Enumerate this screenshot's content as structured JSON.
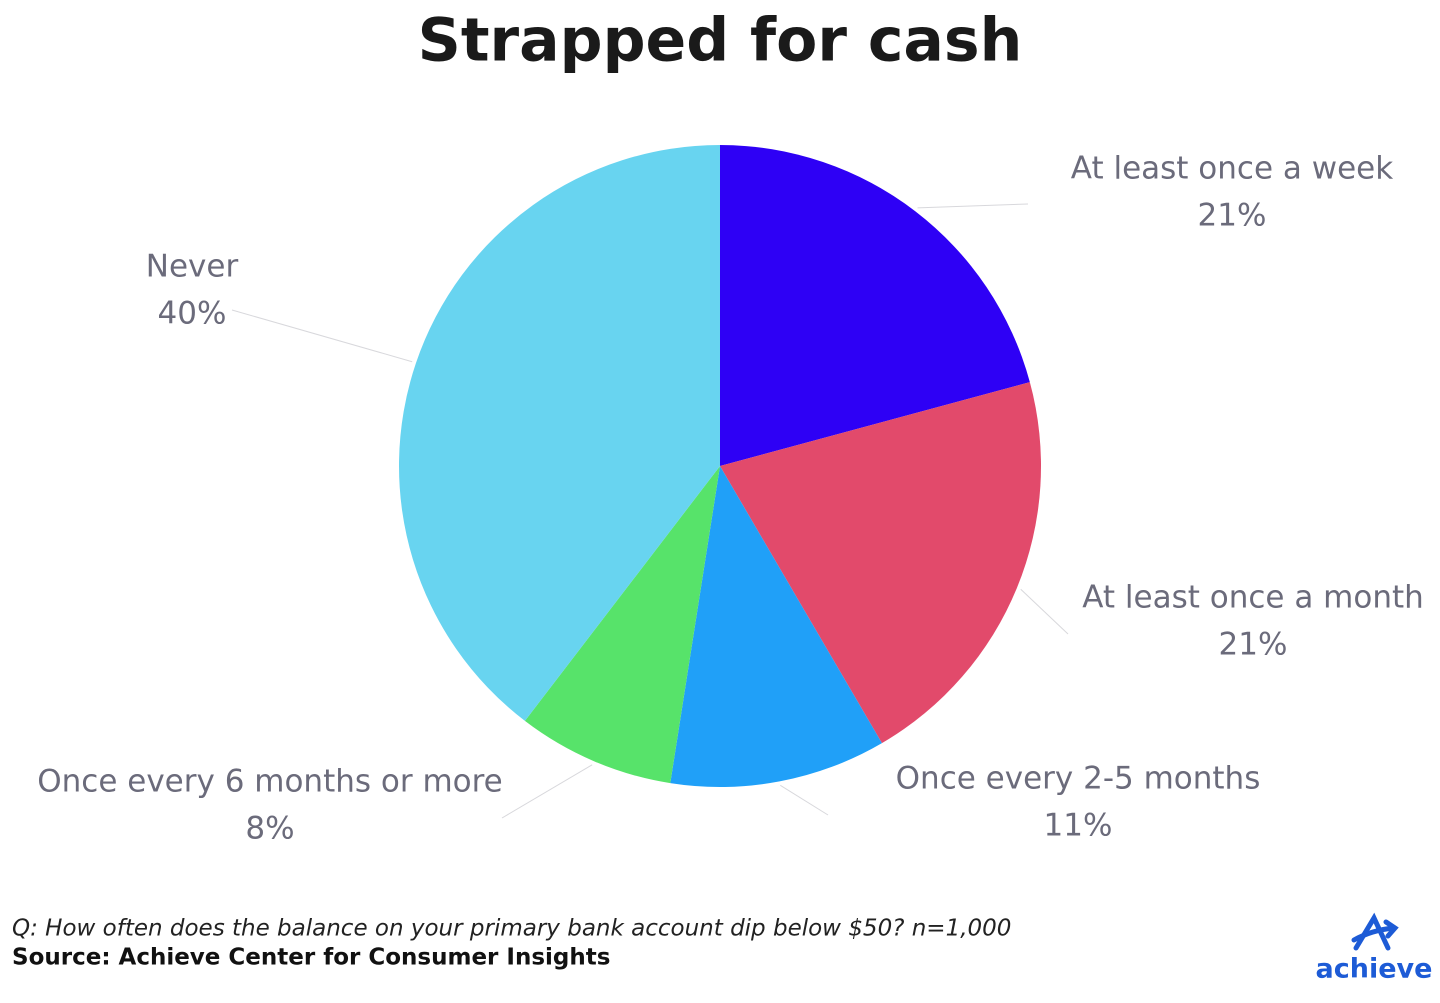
{
  "chart_data": {
    "type": "pie",
    "title": "Strapped for cash",
    "categories": [
      "At least once a week",
      "At least once a month",
      "Once every 2-5 months",
      "Once every 6 months or more",
      "Never"
    ],
    "values": [
      21,
      21,
      11,
      8,
      40
    ],
    "value_labels": [
      "21%",
      "21%",
      "11%",
      "8%",
      "40%"
    ],
    "colors": [
      "#2e00f5",
      "#e24a6b",
      "#20a0f8",
      "#57e36a",
      "#68d4f0"
    ],
    "note": "Q: How often does the balance on your primary bank account dip below $50? n=1,000",
    "source": "Source: Achieve Center for Consumer Insights",
    "logo": "achieve"
  }
}
